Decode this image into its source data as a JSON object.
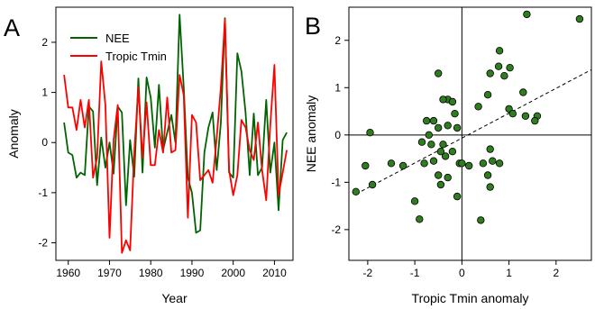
{
  "chart_data": [
    {
      "panel": "A",
      "type": "line",
      "xlabel": "Year",
      "ylabel": "Anomaly",
      "xlim": [
        1957,
        2014.5
      ],
      "ylim": [
        -2.35,
        2.7
      ],
      "xticks": [
        1960,
        1970,
        1980,
        1990,
        2000,
        2010
      ],
      "yticks": [
        -2,
        -1,
        0,
        1,
        2
      ],
      "legend_position": "top-left",
      "series": [
        {
          "name": "NEE",
          "color": "#006400",
          "x": [
            1959,
            1960,
            1961,
            1962,
            1963,
            1964,
            1965,
            1966,
            1967,
            1968,
            1969,
            1970,
            1971,
            1972,
            1973,
            1974,
            1975,
            1976,
            1977,
            1978,
            1979,
            1980,
            1981,
            1982,
            1983,
            1984,
            1985,
            1986,
            1987,
            1988,
            1989,
            1990,
            1991,
            1992,
            1993,
            1994,
            1995,
            1996,
            1997,
            1998,
            1999,
            2000,
            2001,
            2002,
            2003,
            2004,
            2005,
            2006,
            2007,
            2008,
            2009,
            2010,
            2011,
            2012,
            2013
          ],
          "values": [
            0.4,
            -0.2,
            -0.25,
            -0.7,
            -0.6,
            -0.65,
            0.72,
            0.62,
            -0.85,
            0.1,
            -0.5,
            0.0,
            -0.62,
            0.72,
            0.6,
            -1.25,
            0.05,
            -0.68,
            1.28,
            -0.6,
            1.3,
            0.9,
            -0.1,
            1.15,
            -0.15,
            0.2,
            0.55,
            0.0,
            2.55,
            1.1,
            -0.7,
            -1.0,
            -1.8,
            -1.75,
            -0.2,
            0.3,
            0.6,
            -0.55,
            0.4,
            2.48,
            -0.6,
            -0.7,
            1.78,
            1.42,
            0.6,
            -0.65,
            0.58,
            -0.65,
            -0.5,
            0.85,
            -0.6,
            0.0,
            -1.35,
            0.05,
            0.2
          ]
        },
        {
          "name": "Tropic Tmin",
          "color": "#ff0000",
          "x": [
            1959,
            1960,
            1961,
            1962,
            1963,
            1964,
            1965,
            1966,
            1967,
            1968,
            1969,
            1970,
            1971,
            1972,
            1973,
            1974,
            1975,
            1976,
            1977,
            1978,
            1979,
            1980,
            1981,
            1982,
            1983,
            1984,
            1985,
            1986,
            1987,
            1988,
            1989,
            1990,
            1991,
            1992,
            1993,
            1994,
            1995,
            1996,
            1997,
            1998,
            1999,
            2000,
            2001,
            2002,
            2003,
            2004,
            2005,
            2006,
            2007,
            2008,
            2009,
            2010,
            2011,
            2012,
            2013
          ],
          "values": [
            1.35,
            0.7,
            0.7,
            0.25,
            0.85,
            0.3,
            0.85,
            -0.7,
            -0.3,
            1.62,
            0.75,
            -1.9,
            0.05,
            0.75,
            -2.2,
            -1.95,
            -2.15,
            -0.2,
            1.1,
            -0.3,
            0.8,
            -0.45,
            -0.45,
            0.25,
            -0.2,
            0.9,
            -0.2,
            -0.15,
            1.35,
            0.95,
            -1.5,
            0.55,
            0.4,
            -0.75,
            -0.65,
            -0.55,
            -0.8,
            0.1,
            1.1,
            2.45,
            -0.55,
            -1.05,
            -0.65,
            0.45,
            0.3,
            -0.15,
            -0.35,
            0.4,
            -0.55,
            -1.15,
            0.35,
            1.55,
            -1.05,
            -0.6,
            -0.15
          ]
        }
      ]
    },
    {
      "panel": "B",
      "type": "scatter",
      "xlabel": "Tropic Tmin anomaly",
      "ylabel": "NEE anomaly",
      "xlim": [
        -2.4,
        2.75
      ],
      "ylim": [
        -2.65,
        2.7
      ],
      "xticks": [
        -2,
        -1,
        0,
        1,
        2
      ],
      "yticks": [
        -2,
        -1,
        0,
        1,
        2
      ],
      "zero_lines": true,
      "trend_line": {
        "style": "dashed",
        "x": [
          -2.25,
          2.75
        ],
        "y": [
          -1.25,
          1.38
        ]
      },
      "point_color": "#2e7d1e",
      "points": [
        [
          2.5,
          2.45
        ],
        [
          1.38,
          2.55
        ],
        [
          0.8,
          1.78
        ],
        [
          1.02,
          1.42
        ],
        [
          0.78,
          1.45
        ],
        [
          0.9,
          1.25
        ],
        [
          0.6,
          1.3
        ],
        [
          1.3,
          0.9
        ],
        [
          0.55,
          0.85
        ],
        [
          1.0,
          0.55
        ],
        [
          1.08,
          0.45
        ],
        [
          1.35,
          0.4
        ],
        [
          1.6,
          0.4
        ],
        [
          1.55,
          0.3
        ],
        [
          0.35,
          0.6
        ],
        [
          -0.5,
          1.3
        ],
        [
          -0.3,
          0.75
        ],
        [
          -0.2,
          0.7
        ],
        [
          -0.4,
          0.75
        ],
        [
          -0.15,
          0.45
        ],
        [
          -0.6,
          0.3
        ],
        [
          -0.75,
          0.3
        ],
        [
          -0.3,
          0.2
        ],
        [
          -0.5,
          0.15
        ],
        [
          -0.7,
          0.0
        ],
        [
          -0.85,
          -0.15
        ],
        [
          -0.65,
          -0.2
        ],
        [
          -0.45,
          -0.35
        ],
        [
          -0.4,
          -0.2
        ],
        [
          -0.6,
          -0.55
        ],
        [
          -0.8,
          -0.6
        ],
        [
          -0.35,
          -0.45
        ],
        [
          -0.1,
          0.15
        ],
        [
          -0.05,
          -0.6
        ],
        [
          0.0,
          -0.6
        ],
        [
          0.15,
          -0.65
        ],
        [
          0.45,
          -0.6
        ],
        [
          0.6,
          -0.3
        ],
        [
          0.65,
          -0.55
        ],
        [
          0.8,
          -0.6
        ],
        [
          0.55,
          -0.85
        ],
        [
          0.6,
          -1.1
        ],
        [
          -0.3,
          -0.9
        ],
        [
          -0.5,
          -0.85
        ],
        [
          -0.45,
          -1.05
        ],
        [
          -0.1,
          -1.3
        ],
        [
          0.4,
          -1.8
        ],
        [
          -1.0,
          -1.4
        ],
        [
          -0.9,
          -1.78
        ],
        [
          -1.25,
          -0.65
        ],
        [
          -1.5,
          -0.6
        ],
        [
          -1.95,
          0.05
        ],
        [
          -2.05,
          -0.65
        ],
        [
          -1.9,
          -1.05
        ],
        [
          -2.25,
          -1.2
        ],
        [
          -0.2,
          -0.35
        ]
      ]
    }
  ],
  "panel_letters": {
    "a": "A",
    "b": "B"
  }
}
